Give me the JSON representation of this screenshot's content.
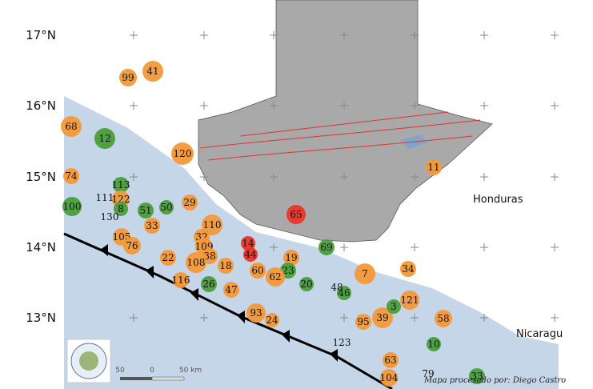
{
  "latitude_labels": [
    "17°N",
    "16°N",
    "15°N",
    "14°N",
    "13°N"
  ],
  "places": [
    "Honduras",
    "Nicaragu"
  ],
  "scale_labels": [
    "50",
    "0",
    "50 km"
  ],
  "credit": "Mapa procesado por: Diego Castro",
  "events": [
    99,
    41,
    68,
    12,
    120,
    74,
    113,
    11,
    122,
    111,
    100,
    8,
    51,
    50,
    29,
    130,
    110,
    33,
    32,
    105,
    76,
    109,
    69,
    65,
    22,
    38,
    108,
    19,
    34,
    7,
    14,
    44,
    18,
    23,
    60,
    62,
    121,
    116,
    26,
    47,
    20,
    46,
    48,
    93,
    24,
    95,
    39,
    3,
    58,
    10,
    123,
    63,
    104,
    79,
    33
  ]
}
